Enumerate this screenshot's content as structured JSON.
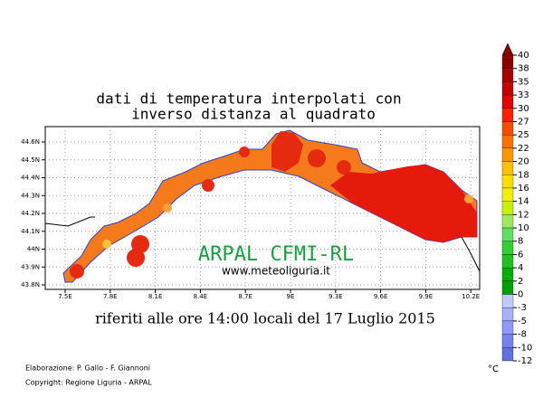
{
  "title_lines": [
    "dati di temperatura interpolati con",
    "inverso distanza al quadrato"
  ],
  "lat_labels": [
    "44.6N",
    "44.5N",
    "44.4N",
    "44.3N",
    "44.2N",
    "44.1N",
    "44N",
    "43.9N",
    "43.8N"
  ],
  "lon_labels": [
    "7.5E",
    "7.8E",
    "8.1E",
    "8.4E",
    "8.7E",
    "9E",
    "9.3E",
    "9.6E",
    "9.9E",
    "10.2E"
  ],
  "watermark": "ARPAL CFMI-RL",
  "website": "www.meteoliguria.it",
  "caption": "riferiti alle ore 14:00 locali del 17 Luglio 2015",
  "colorbar": {
    "unit": "°C",
    "levels": [
      40,
      38,
      35,
      33,
      30,
      27,
      25,
      22,
      20,
      18,
      16,
      14,
      12,
      10,
      8,
      6,
      4,
      2,
      0,
      -3,
      -5,
      -8,
      -10,
      -12
    ],
    "colors": [
      "#8b0000",
      "#a80000",
      "#c40000",
      "#e00000",
      "#ff2000",
      "#ff4a00",
      "#ff7000",
      "#ff9600",
      "#ffc000",
      "#ffe000",
      "#f0f000",
      "#c8f000",
      "#a0e860",
      "#60e060",
      "#30d030",
      "#20c020",
      "#00b000",
      "#00a000",
      "#c0c8ff",
      "#a8b0ff",
      "#9098ff",
      "#7880f0",
      "#6070e0"
    ],
    "top_color": "#8b0000"
  },
  "footer": [
    "Elaborazione: P. Gallo - F. Giannoni",
    "Copyright: Regione Liguria - ARPAL"
  ]
}
